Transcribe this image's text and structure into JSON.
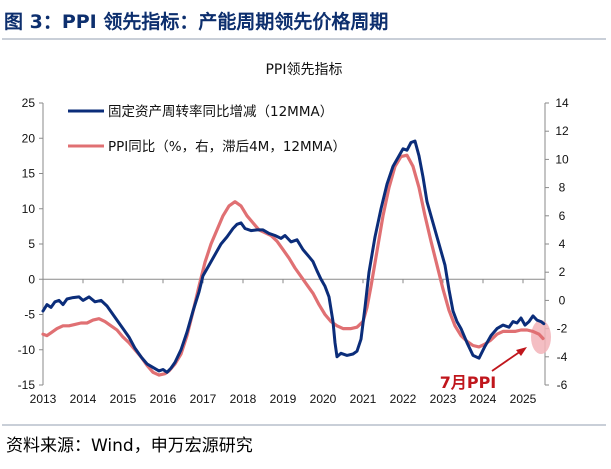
{
  "header": {
    "title": "图 3：PPI 领先指标：产能周期领先价格周期",
    "rule_color": "#c9cfd8",
    "title_color": "#0d2f6e"
  },
  "source": "资料来源：Wind，申万宏源研究",
  "annotation": {
    "text": "7月PPI",
    "color": "#c0161c"
  },
  "chart_data": {
    "type": "line",
    "title": "PPI领先指标",
    "x_tick_labels": [
      "2013",
      "2014",
      "2015",
      "2016",
      "2017",
      "2018",
      "2019",
      "2020",
      "2021",
      "2022",
      "2023",
      "2024",
      "2025"
    ],
    "x_range": [
      2013.0,
      2025.55
    ],
    "y_left": {
      "range": [
        -15,
        25
      ],
      "ticks": [
        25,
        20,
        15,
        10,
        5,
        0,
        -5,
        -10,
        -15
      ]
    },
    "y_right": {
      "range": [
        -6,
        14
      ],
      "ticks": [
        14,
        12,
        10,
        8,
        6,
        4,
        2,
        0,
        -2,
        -4,
        -6
      ]
    },
    "grid": false,
    "legend_position": "top-left",
    "series": [
      {
        "name": "固定资产周转率同比增减（12MMA）",
        "axis": "left",
        "color": "#0b2d7a",
        "points": [
          [
            2013.0,
            -4.5
          ],
          [
            2013.1,
            -3.6
          ],
          [
            2013.2,
            -4.0
          ],
          [
            2013.3,
            -3.2
          ],
          [
            2013.4,
            -3.0
          ],
          [
            2013.5,
            -3.6
          ],
          [
            2013.6,
            -2.8
          ],
          [
            2013.75,
            -2.6
          ],
          [
            2013.9,
            -2.5
          ],
          [
            2014.0,
            -3.0
          ],
          [
            2014.15,
            -2.5
          ],
          [
            2014.3,
            -3.2
          ],
          [
            2014.45,
            -3.0
          ],
          [
            2014.6,
            -3.8
          ],
          [
            2014.75,
            -5.0
          ],
          [
            2014.9,
            -6.2
          ],
          [
            2015.0,
            -7.0
          ],
          [
            2015.15,
            -8.2
          ],
          [
            2015.3,
            -9.8
          ],
          [
            2015.45,
            -11.0
          ],
          [
            2015.6,
            -12.0
          ],
          [
            2015.75,
            -12.5
          ],
          [
            2015.9,
            -13.0
          ],
          [
            2016.0,
            -12.8
          ],
          [
            2016.1,
            -13.2
          ],
          [
            2016.2,
            -12.6
          ],
          [
            2016.3,
            -11.8
          ],
          [
            2016.45,
            -10.0
          ],
          [
            2016.6,
            -7.5
          ],
          [
            2016.75,
            -4.5
          ],
          [
            2016.9,
            -1.8
          ],
          [
            2017.0,
            0.5
          ],
          [
            2017.15,
            2.0
          ],
          [
            2017.3,
            3.5
          ],
          [
            2017.45,
            5.0
          ],
          [
            2017.6,
            6.0
          ],
          [
            2017.75,
            7.2
          ],
          [
            2017.85,
            7.8
          ],
          [
            2017.95,
            8.0
          ],
          [
            2018.05,
            7.2
          ],
          [
            2018.2,
            6.9
          ],
          [
            2018.35,
            7.0
          ],
          [
            2018.5,
            7.0
          ],
          [
            2018.65,
            6.5
          ],
          [
            2018.8,
            6.2
          ],
          [
            2018.95,
            5.8
          ],
          [
            2019.05,
            6.2
          ],
          [
            2019.2,
            5.3
          ],
          [
            2019.35,
            5.6
          ],
          [
            2019.5,
            4.2
          ],
          [
            2019.65,
            3.2
          ],
          [
            2019.75,
            2.5
          ],
          [
            2019.85,
            1.2
          ],
          [
            2019.95,
            0.0
          ],
          [
            2020.05,
            -1.0
          ],
          [
            2020.15,
            -2.5
          ],
          [
            2020.25,
            -6.0
          ],
          [
            2020.3,
            -9.0
          ],
          [
            2020.35,
            -11.0
          ],
          [
            2020.45,
            -10.5
          ],
          [
            2020.6,
            -10.8
          ],
          [
            2020.75,
            -10.6
          ],
          [
            2020.85,
            -10.2
          ],
          [
            2020.95,
            -8.5
          ],
          [
            2021.05,
            -4.0
          ],
          [
            2021.15,
            1.0
          ],
          [
            2021.3,
            6.0
          ],
          [
            2021.45,
            10.0
          ],
          [
            2021.6,
            13.5
          ],
          [
            2021.75,
            16.0
          ],
          [
            2021.9,
            17.5
          ],
          [
            2022.0,
            18.5
          ],
          [
            2022.1,
            18.3
          ],
          [
            2022.2,
            19.4
          ],
          [
            2022.3,
            19.6
          ],
          [
            2022.4,
            17.5
          ],
          [
            2022.5,
            14.5
          ],
          [
            2022.6,
            11.0
          ],
          [
            2022.75,
            8.0
          ],
          [
            2022.9,
            5.0
          ],
          [
            2023.05,
            2.0
          ],
          [
            2023.15,
            -1.5
          ],
          [
            2023.25,
            -4.5
          ],
          [
            2023.35,
            -6.0
          ],
          [
            2023.45,
            -7.0
          ],
          [
            2023.6,
            -9.0
          ],
          [
            2023.75,
            -10.8
          ],
          [
            2023.9,
            -11.2
          ],
          [
            2024.05,
            -9.5
          ],
          [
            2024.2,
            -8.0
          ],
          [
            2024.35,
            -7.0
          ],
          [
            2024.5,
            -6.5
          ],
          [
            2024.65,
            -6.8
          ],
          [
            2024.75,
            -6.0
          ],
          [
            2024.85,
            -6.2
          ],
          [
            2024.95,
            -5.5
          ],
          [
            2025.05,
            -6.5
          ],
          [
            2025.15,
            -6.0
          ],
          [
            2025.25,
            -5.2
          ],
          [
            2025.35,
            -5.8
          ],
          [
            2025.45,
            -6.0
          ],
          [
            2025.52,
            -6.3
          ]
        ]
      },
      {
        "name": "PPI同比（%，右，滞后4M，12MMA）",
        "axis": "right",
        "color": "#e07073",
        "points": [
          [
            2013.0,
            -2.4
          ],
          [
            2013.1,
            -2.5
          ],
          [
            2013.2,
            -2.3
          ],
          [
            2013.35,
            -2.0
          ],
          [
            2013.5,
            -1.8
          ],
          [
            2013.65,
            -1.8
          ],
          [
            2013.8,
            -1.7
          ],
          [
            2013.95,
            -1.6
          ],
          [
            2014.1,
            -1.6
          ],
          [
            2014.25,
            -1.4
          ],
          [
            2014.4,
            -1.3
          ],
          [
            2014.55,
            -1.5
          ],
          [
            2014.7,
            -1.8
          ],
          [
            2014.85,
            -2.1
          ],
          [
            2015.0,
            -2.6
          ],
          [
            2015.15,
            -3.0
          ],
          [
            2015.3,
            -3.5
          ],
          [
            2015.45,
            -4.0
          ],
          [
            2015.6,
            -4.6
          ],
          [
            2015.75,
            -5.1
          ],
          [
            2015.9,
            -5.3
          ],
          [
            2016.05,
            -5.2
          ],
          [
            2016.15,
            -5.0
          ],
          [
            2016.3,
            -4.5
          ],
          [
            2016.45,
            -3.8
          ],
          [
            2016.6,
            -2.5
          ],
          [
            2016.75,
            -0.8
          ],
          [
            2016.9,
            1.0
          ],
          [
            2017.05,
            2.7
          ],
          [
            2017.2,
            4.0
          ],
          [
            2017.35,
            5.0
          ],
          [
            2017.5,
            6.0
          ],
          [
            2017.65,
            6.7
          ],
          [
            2017.8,
            7.0
          ],
          [
            2017.95,
            6.7
          ],
          [
            2018.1,
            6.0
          ],
          [
            2018.25,
            5.5
          ],
          [
            2018.4,
            5.0
          ],
          [
            2018.55,
            4.8
          ],
          [
            2018.7,
            4.6
          ],
          [
            2018.85,
            4.2
          ],
          [
            2019.0,
            3.6
          ],
          [
            2019.15,
            3.0
          ],
          [
            2019.3,
            2.3
          ],
          [
            2019.45,
            1.7
          ],
          [
            2019.6,
            1.1
          ],
          [
            2019.75,
            0.5
          ],
          [
            2019.9,
            -0.3
          ],
          [
            2020.05,
            -1.0
          ],
          [
            2020.2,
            -1.5
          ],
          [
            2020.35,
            -1.8
          ],
          [
            2020.5,
            -2.0
          ],
          [
            2020.7,
            -2.0
          ],
          [
            2020.85,
            -1.9
          ],
          [
            2021.0,
            -1.5
          ],
          [
            2021.1,
            -0.5
          ],
          [
            2021.2,
            1.0
          ],
          [
            2021.35,
            3.5
          ],
          [
            2021.5,
            6.0
          ],
          [
            2021.65,
            8.0
          ],
          [
            2021.8,
            9.5
          ],
          [
            2021.95,
            10.2
          ],
          [
            2022.1,
            10.3
          ],
          [
            2022.25,
            9.5
          ],
          [
            2022.4,
            8.0
          ],
          [
            2022.55,
            6.0
          ],
          [
            2022.7,
            4.2
          ],
          [
            2022.85,
            2.5
          ],
          [
            2023.0,
            0.8
          ],
          [
            2023.15,
            -0.7
          ],
          [
            2023.3,
            -1.8
          ],
          [
            2023.45,
            -2.5
          ],
          [
            2023.6,
            -2.9
          ],
          [
            2023.75,
            -3.2
          ],
          [
            2023.9,
            -3.3
          ],
          [
            2024.05,
            -3.1
          ],
          [
            2024.2,
            -2.8
          ],
          [
            2024.35,
            -2.4
          ],
          [
            2024.5,
            -2.2
          ],
          [
            2024.65,
            -2.2
          ],
          [
            2024.8,
            -2.2
          ],
          [
            2024.95,
            -2.1
          ],
          [
            2025.1,
            -2.1
          ],
          [
            2025.25,
            -2.2
          ],
          [
            2025.4,
            -2.4
          ],
          [
            2025.5,
            -2.7
          ]
        ]
      }
    ],
    "highlight": {
      "x": 2025.5,
      "y_right": -2.6,
      "color": "#f2b3b8"
    }
  }
}
